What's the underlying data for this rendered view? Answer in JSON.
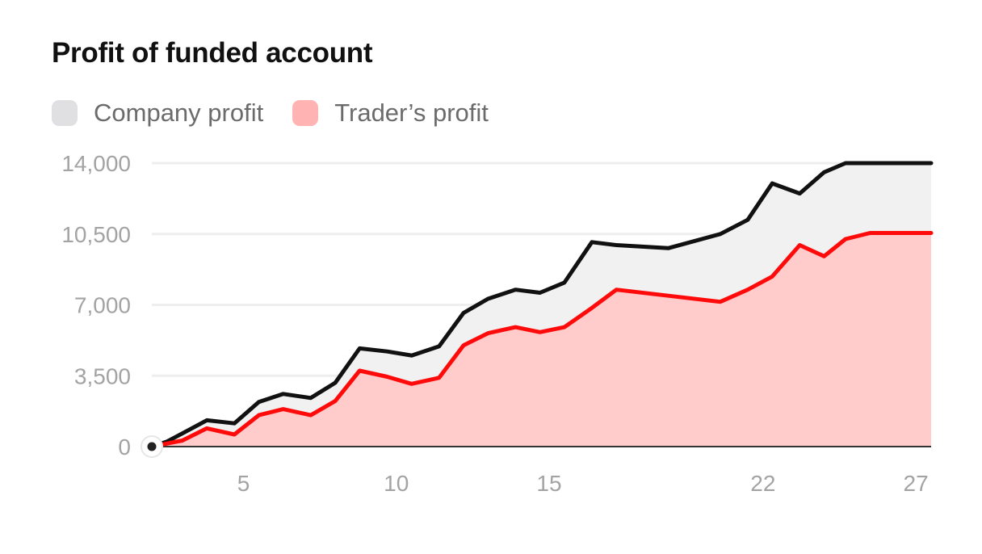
{
  "chart_data": {
    "type": "area",
    "title": "Profit of funded account",
    "xlabel": "",
    "ylabel": "",
    "ylim": [
      0,
      14000
    ],
    "xlim": [
      2,
      27.5
    ],
    "yticks": [
      0,
      3500,
      7000,
      10500,
      14000
    ],
    "ytick_labels": [
      "0",
      "3,500",
      "7,000",
      "10,500",
      "14,000"
    ],
    "xticks": [
      5,
      10,
      15,
      22,
      27
    ],
    "xtick_labels": [
      "5",
      "10",
      "15",
      "22",
      "27"
    ],
    "grid": true,
    "legend_position": "top-left",
    "x": [
      2,
      2.5,
      3,
      3.8,
      4.7,
      5.5,
      6.3,
      7.2,
      8,
      8.8,
      9.7,
      10.5,
      11.4,
      12.2,
      13,
      13.9,
      14.7,
      15.5,
      16.4,
      17.2,
      18.9,
      20.6,
      21.5,
      22.3,
      23.2,
      24,
      24.7,
      25.5,
      26.4,
      27.5
    ],
    "series": [
      {
        "name": "Company profit",
        "values": [
          0,
          250,
          650,
          1300,
          1150,
          2200,
          2600,
          2400,
          3150,
          4850,
          4700,
          4500,
          4950,
          6600,
          7300,
          7750,
          7600,
          8100,
          10100,
          9950,
          9800,
          10500,
          11200,
          13000,
          12500,
          13550,
          14000,
          14000,
          14000,
          14000
        ],
        "color": "#111111",
        "fill": "#f1f1f1"
      },
      {
        "name": "Trader’s profit",
        "values": [
          0,
          150,
          300,
          900,
          600,
          1550,
          1850,
          1550,
          2250,
          3750,
          3450,
          3100,
          3400,
          5000,
          5600,
          5900,
          5650,
          5900,
          6850,
          7750,
          7450,
          7150,
          7750,
          8400,
          9950,
          9400,
          10250,
          10550,
          10550,
          10550
        ],
        "color": "#ff0a0a",
        "fill": "#ffcbcb"
      }
    ],
    "legend_colors": {
      "company": "#e0e0e2",
      "trader": "#ffb3b3"
    }
  }
}
